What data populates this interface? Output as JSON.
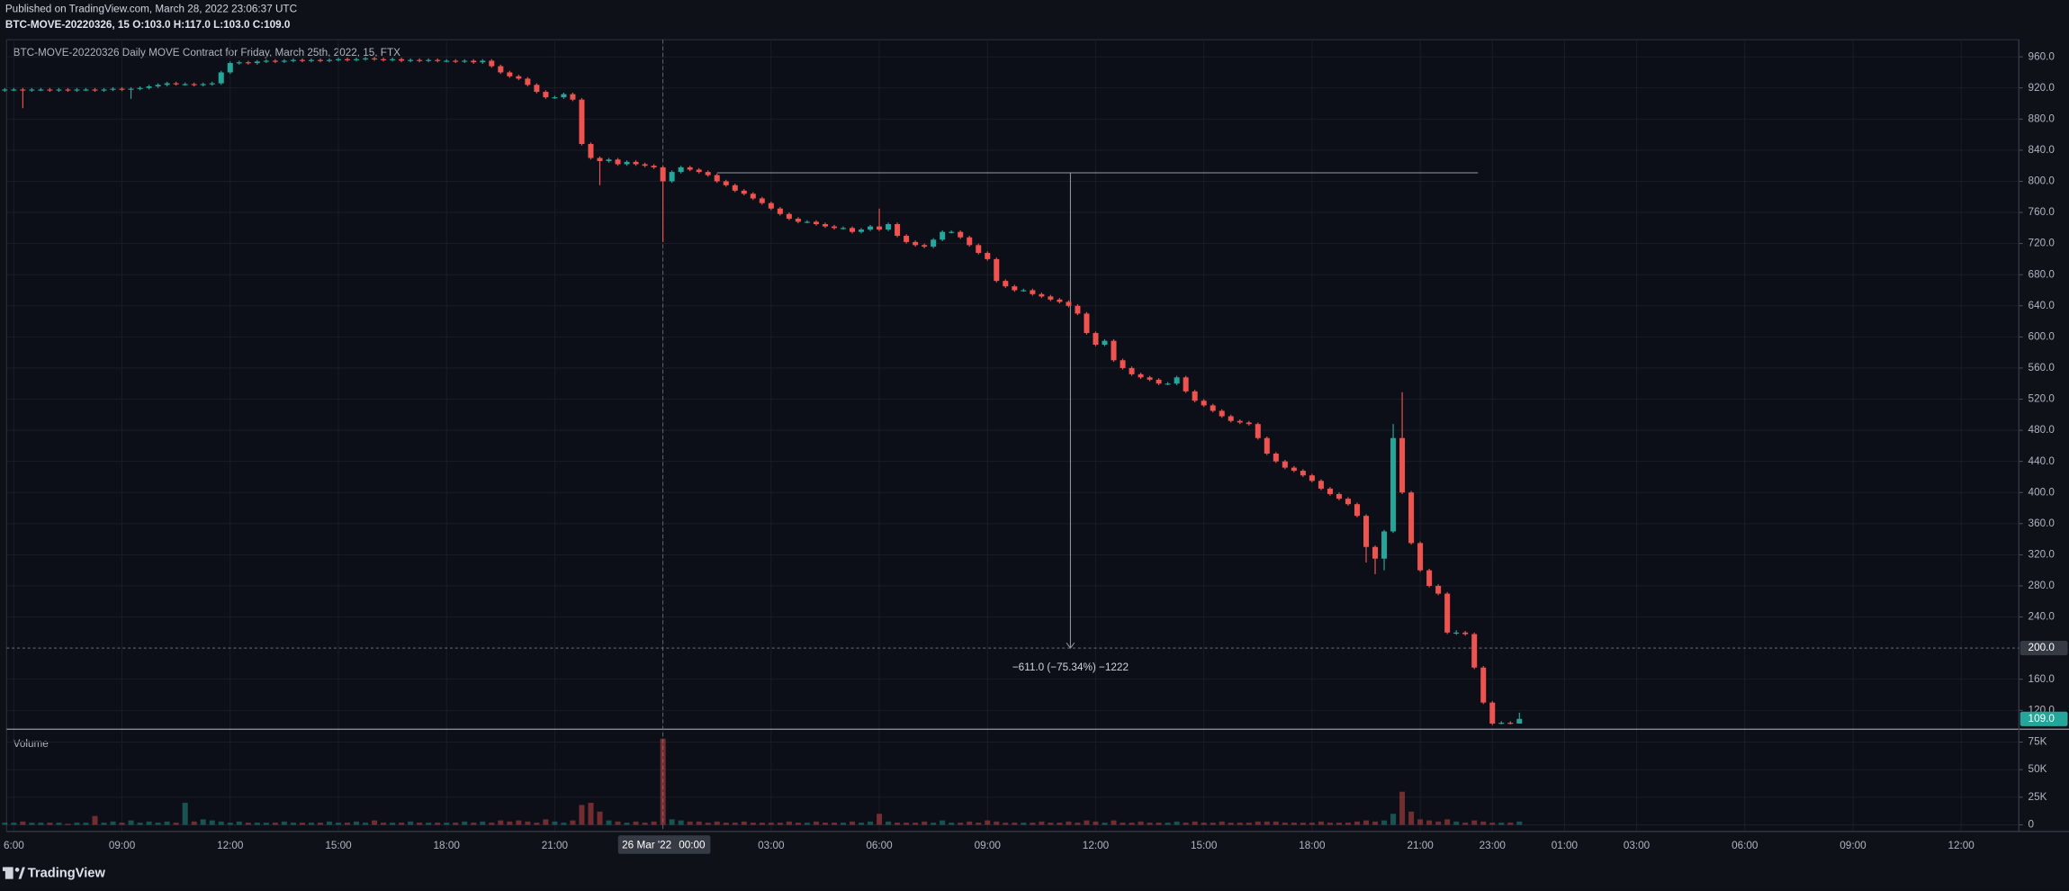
{
  "chart_data": {
    "type": "candlestick",
    "published": "Published on TradingView.com, March 28, 2022 23:06:37 UTC",
    "legend": "BTC-MOVE-20220326, 15 O:103.0 H:117.0 L:103.0 C:109.0",
    "title": "BTC-MOVE-20220326 Daily MOVE Contract for Friday, March 25th, 2022, 15, FTX",
    "volume_title": "Volume",
    "footer": "TradingView",
    "up_color": "#26a69a",
    "down_color": "#ef5350",
    "grid": true,
    "x": [
      5.75,
      6,
      6.25,
      6.5,
      6.75,
      7,
      7.25,
      7.5,
      7.75,
      8,
      8.25,
      8.5,
      8.75,
      9,
      9.25,
      9.5,
      9.75,
      10,
      10.25,
      10.5,
      10.75,
      11,
      11.25,
      11.5,
      11.75,
      12,
      12.25,
      12.5,
      12.75,
      13,
      13.25,
      13.5,
      13.75,
      14,
      14.25,
      14.5,
      14.75,
      15,
      15.25,
      15.5,
      15.75,
      16,
      16.25,
      16.5,
      16.75,
      17,
      17.25,
      17.5,
      17.75,
      18,
      18.25,
      18.5,
      18.75,
      19,
      19.25,
      19.5,
      19.75,
      20,
      20.25,
      20.5,
      20.75,
      21,
      21.25,
      21.5,
      21.75,
      22,
      22.25,
      22.5,
      22.75,
      23,
      23.25,
      23.5,
      23.75,
      24,
      24.25,
      24.5,
      24.75,
      25,
      25.25,
      25.5,
      25.75,
      26,
      26.25,
      26.5,
      26.75,
      27,
      27.25,
      27.5,
      27.75,
      28,
      28.25,
      28.5,
      28.75,
      29,
      29.25,
      29.5,
      29.75,
      30,
      30.25,
      30.5,
      30.75,
      31,
      31.25,
      31.5,
      31.75,
      32,
      32.25,
      32.5,
      32.75,
      33,
      33.25,
      33.5,
      33.75,
      34,
      34.25,
      34.5,
      34.75,
      35,
      35.25,
      35.5,
      35.75,
      36,
      36.25,
      36.5,
      36.75,
      37,
      37.25,
      37.5,
      37.75,
      38,
      38.25,
      38.5,
      38.75,
      39,
      39.25,
      39.5,
      39.75,
      40,
      40.25,
      40.5,
      40.75,
      41,
      41.25,
      41.5,
      41.75,
      42,
      42.25,
      42.5,
      42.75,
      43,
      43.25,
      43.5,
      43.75,
      44,
      44.25,
      44.5,
      44.75,
      45,
      45.25,
      45.5,
      45.75,
      46,
      46.25,
      46.5,
      46.75,
      47,
      47.25,
      47.5,
      47.75
    ],
    "open": [
      917,
      918,
      918,
      917,
      918,
      918,
      917,
      918,
      917,
      918,
      918,
      917,
      918,
      919,
      918,
      919,
      920,
      922,
      924,
      926,
      925,
      925,
      924,
      925,
      926,
      940,
      952,
      953,
      952,
      954,
      955,
      954,
      955,
      956,
      955,
      956,
      955,
      956,
      957,
      956,
      957,
      958,
      957,
      956,
      957,
      955,
      956,
      955,
      956,
      955,
      955,
      954,
      955,
      953,
      955,
      948,
      940,
      935,
      932,
      924,
      915,
      908,
      908,
      912,
      905,
      848,
      830,
      826,
      828,
      822,
      825,
      822,
      820,
      818,
      800,
      812,
      818,
      815,
      812,
      808,
      800,
      795,
      788,
      784,
      778,
      772,
      765,
      758,
      752,
      748,
      748,
      745,
      742,
      740,
      740,
      735,
      738,
      742,
      738,
      745,
      730,
      722,
      718,
      716,
      725,
      735,
      735,
      728,
      718,
      708,
      700,
      672,
      665,
      660,
      660,
      655,
      652,
      648,
      645,
      640,
      630,
      605,
      590,
      595,
      570,
      560,
      552,
      548,
      545,
      540,
      540,
      548,
      530,
      518,
      512,
      505,
      498,
      492,
      490,
      488,
      470,
      450,
      440,
      432,
      428,
      422,
      415,
      405,
      398,
      392,
      385,
      370,
      330,
      315,
      350,
      470,
      400,
      335,
      300,
      280,
      270,
      220,
      220,
      218,
      175,
      130,
      103,
      104,
      103
    ],
    "high": [
      920,
      920,
      920,
      920,
      920,
      920,
      920,
      920,
      920,
      920,
      920,
      920,
      921,
      921,
      921,
      922,
      924,
      926,
      928,
      928,
      927,
      927,
      927,
      928,
      942,
      954,
      955,
      955,
      956,
      957,
      957,
      957,
      958,
      958,
      958,
      958,
      958,
      959,
      959,
      959,
      960,
      960,
      959,
      959,
      959,
      958,
      958,
      958,
      958,
      957,
      957,
      957,
      957,
      957,
      957,
      950,
      942,
      937,
      934,
      926,
      917,
      910,
      914,
      914,
      907,
      850,
      832,
      830,
      830,
      827,
      827,
      824,
      822,
      820,
      814,
      820,
      820,
      817,
      814,
      810,
      802,
      797,
      790,
      786,
      780,
      774,
      767,
      760,
      754,
      750,
      750,
      747,
      744,
      742,
      742,
      740,
      744,
      765,
      747,
      747,
      732,
      724,
      720,
      727,
      737,
      737,
      737,
      730,
      720,
      710,
      702,
      674,
      667,
      662,
      662,
      657,
      654,
      650,
      647,
      642,
      632,
      607,
      597,
      597,
      572,
      562,
      554,
      550,
      547,
      542,
      550,
      550,
      532,
      520,
      514,
      507,
      500,
      494,
      492,
      490,
      472,
      452,
      442,
      434,
      430,
      424,
      417,
      407,
      400,
      394,
      387,
      372,
      332,
      352,
      488,
      529,
      402,
      337,
      302,
      282,
      272,
      223,
      222,
      220,
      177,
      132,
      106,
      106,
      117
    ],
    "low": [
      915,
      916,
      894,
      915,
      916,
      915,
      915,
      915,
      915,
      916,
      915,
      915,
      916,
      916,
      906,
      917,
      918,
      920,
      922,
      923,
      923,
      922,
      922,
      923,
      924,
      938,
      950,
      950,
      950,
      952,
      952,
      952,
      953,
      953,
      953,
      953,
      953,
      954,
      954,
      954,
      955,
      955,
      954,
      954,
      953,
      953,
      953,
      953,
      953,
      953,
      952,
      952,
      951,
      951,
      946,
      938,
      933,
      930,
      922,
      913,
      906,
      906,
      906,
      903,
      846,
      828,
      795,
      824,
      820,
      820,
      820,
      818,
      816,
      722,
      798,
      810,
      813,
      810,
      806,
      798,
      793,
      786,
      782,
      776,
      770,
      763,
      756,
      750,
      746,
      746,
      743,
      740,
      738,
      738,
      733,
      733,
      736,
      736,
      736,
      728,
      720,
      716,
      714,
      714,
      723,
      733,
      726,
      716,
      706,
      698,
      670,
      663,
      658,
      658,
      653,
      650,
      646,
      643,
      638,
      628,
      603,
      588,
      588,
      568,
      558,
      550,
      546,
      543,
      538,
      538,
      538,
      528,
      516,
      510,
      503,
      496,
      490,
      488,
      486,
      468,
      448,
      438,
      430,
      426,
      420,
      413,
      403,
      396,
      390,
      383,
      368,
      310,
      295,
      300,
      348,
      398,
      333,
      298,
      278,
      268,
      218,
      217,
      216,
      173,
      128,
      101,
      102,
      102,
      103
    ],
    "close": [
      918,
      918,
      917,
      918,
      918,
      917,
      918,
      917,
      918,
      918,
      917,
      918,
      919,
      918,
      919,
      920,
      922,
      924,
      926,
      925,
      925,
      924,
      925,
      926,
      940,
      952,
      953,
      952,
      954,
      955,
      954,
      955,
      956,
      955,
      956,
      955,
      956,
      957,
      956,
      957,
      958,
      957,
      956,
      957,
      955,
      956,
      955,
      956,
      955,
      955,
      954,
      955,
      953,
      955,
      948,
      940,
      935,
      932,
      924,
      915,
      908,
      908,
      912,
      905,
      848,
      830,
      826,
      828,
      822,
      825,
      822,
      820,
      818,
      800,
      812,
      818,
      815,
      812,
      808,
      800,
      795,
      788,
      784,
      778,
      772,
      765,
      758,
      752,
      748,
      748,
      745,
      742,
      740,
      740,
      735,
      738,
      742,
      738,
      745,
      730,
      722,
      718,
      716,
      725,
      735,
      735,
      728,
      718,
      708,
      700,
      672,
      665,
      660,
      660,
      655,
      652,
      648,
      645,
      640,
      630,
      605,
      590,
      595,
      570,
      560,
      552,
      548,
      545,
      540,
      540,
      548,
      530,
      518,
      512,
      505,
      498,
      492,
      490,
      488,
      470,
      450,
      440,
      432,
      428,
      422,
      415,
      405,
      398,
      392,
      385,
      370,
      330,
      315,
      350,
      470,
      400,
      335,
      300,
      280,
      270,
      220,
      220,
      218,
      175,
      130,
      103,
      104,
      103,
      109
    ],
    "volume": [
      2000,
      2000,
      3000,
      2000,
      2000,
      2000,
      2000,
      1000,
      2000,
      2000,
      8000,
      2000,
      3000,
      2000,
      4000,
      2000,
      3000,
      2000,
      3000,
      2000,
      20000,
      3000,
      5000,
      4000,
      3000,
      2000,
      3000,
      2000,
      2000,
      2000,
      2000,
      3000,
      2000,
      2000,
      2000,
      2000,
      3000,
      2000,
      2000,
      3000,
      2000,
      4000,
      2000,
      2000,
      2000,
      3000,
      2000,
      2000,
      2000,
      2000,
      2000,
      3000,
      2000,
      3000,
      2000,
      4000,
      3000,
      4000,
      3000,
      2000,
      5000,
      3000,
      2000,
      4000,
      18000,
      20000,
      12000,
      4000,
      3000,
      2000,
      3000,
      2000,
      3000,
      78000,
      5000,
      4000,
      3000,
      3000,
      2000,
      3000,
      2000,
      2000,
      3000,
      2000,
      2000,
      2000,
      2000,
      3000,
      2000,
      2000,
      3000,
      2000,
      2000,
      2000,
      3000,
      2000,
      3000,
      10000,
      3000,
      2000,
      2000,
      2000,
      3000,
      2000,
      4000,
      2000,
      2000,
      3000,
      2000,
      4000,
      3000,
      2000,
      2000,
      2000,
      2000,
      3000,
      2000,
      2000,
      3000,
      2000,
      4000,
      3000,
      2000,
      4000,
      2000,
      2000,
      3000,
      2000,
      2000,
      2000,
      3000,
      2000,
      3000,
      2000,
      2000,
      3000,
      2000,
      2000,
      2000,
      3000,
      3000,
      3000,
      2000,
      2000,
      2000,
      2000,
      3000,
      2000,
      2000,
      2000,
      3000,
      4000,
      3000,
      4000,
      10000,
      30000,
      12000,
      5000,
      4000,
      3000,
      5000,
      3000,
      2000,
      4000,
      3000,
      2000,
      2000,
      2000,
      3000
    ],
    "xlim": [
      5.8,
      61.6
    ],
    "xticks": [
      {
        "value": 6,
        "label": "6:00"
      },
      {
        "value": 9,
        "label": "09:00"
      },
      {
        "value": 12,
        "label": "12:00"
      },
      {
        "value": 15,
        "label": "15:00"
      },
      {
        "value": 18,
        "label": "18:00"
      },
      {
        "value": 21,
        "label": "21:00"
      },
      {
        "value": 24,
        "label": "00:00"
      },
      {
        "value": 27,
        "label": "03:00"
      },
      {
        "value": 30,
        "label": "06:00"
      },
      {
        "value": 33,
        "label": "09:00"
      },
      {
        "value": 36,
        "label": "12:00"
      },
      {
        "value": 39,
        "label": "15:00"
      },
      {
        "value": 42,
        "label": "18:00"
      },
      {
        "value": 45,
        "label": "21:00"
      },
      {
        "value": 47,
        "label": "23:00"
      },
      {
        "value": 49,
        "label": "01:00"
      },
      {
        "value": 51,
        "label": "03:00"
      },
      {
        "value": 54,
        "label": "06:00"
      },
      {
        "value": 57,
        "label": "09:00"
      },
      {
        "value": 60,
        "label": "12:00"
      }
    ],
    "ylim": [
      96.6,
      982
    ],
    "yticks": [
      {
        "value": 960,
        "label": "960.0"
      },
      {
        "value": 920,
        "label": "920.0"
      },
      {
        "value": 880,
        "label": "880.0"
      },
      {
        "value": 840,
        "label": "840.0"
      },
      {
        "value": 800,
        "label": "800.0"
      },
      {
        "value": 760,
        "label": "760.0"
      },
      {
        "value": 720,
        "label": "720.0"
      },
      {
        "value": 680,
        "label": "680.0"
      },
      {
        "value": 640,
        "label": "640.0"
      },
      {
        "value": 600,
        "label": "600.0"
      },
      {
        "value": 560,
        "label": "560.0"
      },
      {
        "value": 520,
        "label": "520.0"
      },
      {
        "value": 480,
        "label": "480.0"
      },
      {
        "value": 440,
        "label": "440.0"
      },
      {
        "value": 400,
        "label": "400.0"
      },
      {
        "value": 360,
        "label": "360.0"
      },
      {
        "value": 320,
        "label": "320.0"
      },
      {
        "value": 280,
        "label": "280.0"
      },
      {
        "value": 240,
        "label": "240.0"
      },
      {
        "value": 160,
        "label": "160.0"
      },
      {
        "value": 120,
        "label": "120.0"
      }
    ],
    "volume_ylim": [
      -6000,
      86000
    ],
    "volume_yticks": [
      {
        "value": 75000,
        "label": "75K"
      },
      {
        "value": 50000,
        "label": "50K"
      },
      {
        "value": 25000,
        "label": "25K"
      },
      0
    ],
    "price_line": {
      "value": 200,
      "label": "200.0"
    },
    "last_price": {
      "value": 109,
      "label": "109.0"
    },
    "crosshair": {
      "x": 24,
      "label": "26 Mar '22"
    },
    "measure": {
      "from": 811,
      "to": 200,
      "label": "−611.0 (−75.34%) −1222"
    }
  }
}
